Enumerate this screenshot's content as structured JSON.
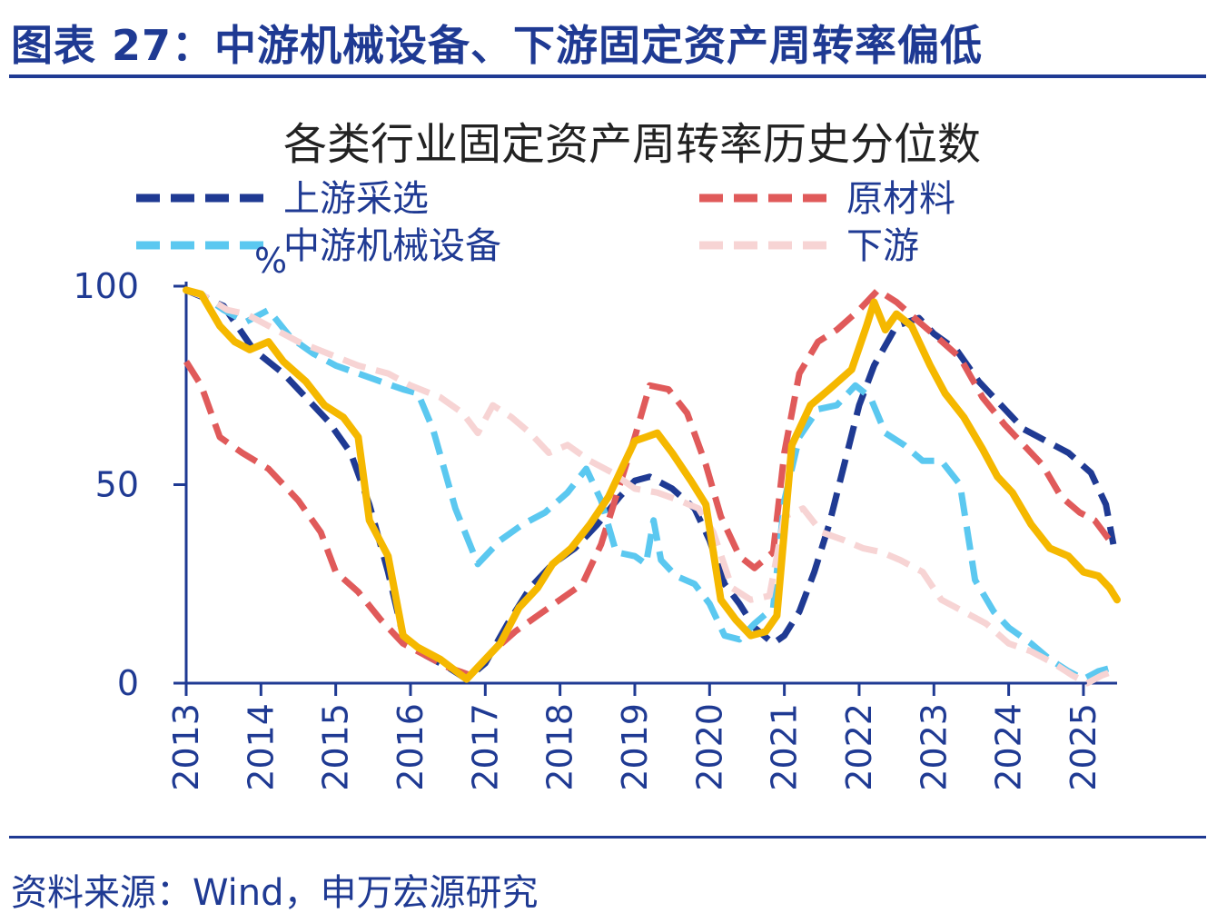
{
  "figure_title": "图表 27：中游机械设备、下游固定资产周转率偏低",
  "source": "资料来源：Wind，申万宏源研究",
  "colors": {
    "upstream": "#1f3a93",
    "materials": "#e05a5a",
    "midstream": "#5bc8f0",
    "downstream": "#f7d4d4",
    "highlight": "#f5b800",
    "axis": "#1f3a93"
  },
  "chart_data": {
    "type": "line",
    "title": "各类行业固定资产周转率历史分位数",
    "ylabel": "%",
    "ylim": [
      0,
      100
    ],
    "yticks": [
      0,
      50,
      100
    ],
    "xlim": [
      2013,
      2025.45
    ],
    "xticks": [
      "2013",
      "2014",
      "2015",
      "2016",
      "2017",
      "2018",
      "2019",
      "2020",
      "2021",
      "2022",
      "2023",
      "2024",
      "2025"
    ],
    "legend_position": "top",
    "series": [
      {
        "name": "上游采选",
        "style": "dashed",
        "color": "#1f3a93",
        "points": [
          [
            2013.0,
            99
          ],
          [
            2013.5,
            95
          ],
          [
            2013.9,
            84
          ],
          [
            2014.3,
            78
          ],
          [
            2014.6,
            72
          ],
          [
            2014.9,
            66
          ],
          [
            2015.2,
            58
          ],
          [
            2015.45,
            45
          ],
          [
            2015.7,
            28
          ],
          [
            2015.9,
            12
          ],
          [
            2016.2,
            7
          ],
          [
            2016.5,
            4
          ],
          [
            2016.75,
            1
          ],
          [
            2017.0,
            5
          ],
          [
            2017.3,
            15
          ],
          [
            2017.6,
            24
          ],
          [
            2017.9,
            30
          ],
          [
            2018.2,
            34
          ],
          [
            2018.5,
            40
          ],
          [
            2018.8,
            47
          ],
          [
            2019.0,
            51
          ],
          [
            2019.2,
            52
          ],
          [
            2019.5,
            49
          ],
          [
            2019.8,
            44
          ],
          [
            2020.0,
            36
          ],
          [
            2020.2,
            25
          ],
          [
            2020.4,
            20
          ],
          [
            2020.6,
            14
          ],
          [
            2020.85,
            10
          ],
          [
            2021.0,
            12
          ],
          [
            2021.2,
            18
          ],
          [
            2021.4,
            28
          ],
          [
            2021.6,
            40
          ],
          [
            2021.8,
            55
          ],
          [
            2022.0,
            70
          ],
          [
            2022.2,
            80
          ],
          [
            2022.5,
            90
          ],
          [
            2022.8,
            92
          ],
          [
            2023.0,
            88
          ],
          [
            2023.3,
            84
          ],
          [
            2023.6,
            76
          ],
          [
            2023.9,
            70
          ],
          [
            2024.2,
            64
          ],
          [
            2024.5,
            61
          ],
          [
            2024.8,
            58
          ],
          [
            2025.1,
            53
          ],
          [
            2025.3,
            45
          ],
          [
            2025.4,
            35
          ]
        ]
      },
      {
        "name": "原材料",
        "style": "dashed",
        "color": "#e05a5a",
        "points": [
          [
            2013.0,
            81
          ],
          [
            2013.2,
            75
          ],
          [
            2013.45,
            62
          ],
          [
            2013.75,
            58
          ],
          [
            2014.1,
            54
          ],
          [
            2014.5,
            46
          ],
          [
            2014.8,
            38
          ],
          [
            2015.0,
            28
          ],
          [
            2015.3,
            23
          ],
          [
            2015.6,
            16
          ],
          [
            2015.9,
            10
          ],
          [
            2016.2,
            7
          ],
          [
            2016.5,
            4
          ],
          [
            2016.8,
            2
          ],
          [
            2017.1,
            8
          ],
          [
            2017.4,
            13
          ],
          [
            2017.7,
            17
          ],
          [
            2018.0,
            21
          ],
          [
            2018.3,
            25
          ],
          [
            2018.55,
            35
          ],
          [
            2018.8,
            50
          ],
          [
            2019.0,
            62
          ],
          [
            2019.2,
            75
          ],
          [
            2019.45,
            74
          ],
          [
            2019.7,
            68
          ],
          [
            2019.95,
            55
          ],
          [
            2020.15,
            42
          ],
          [
            2020.4,
            32
          ],
          [
            2020.6,
            29
          ],
          [
            2020.85,
            33
          ],
          [
            2021.0,
            58
          ],
          [
            2021.2,
            78
          ],
          [
            2021.45,
            86
          ],
          [
            2021.7,
            89
          ],
          [
            2022.0,
            94
          ],
          [
            2022.25,
            99
          ],
          [
            2022.5,
            96
          ],
          [
            2022.8,
            91
          ],
          [
            2023.05,
            87
          ],
          [
            2023.35,
            82
          ],
          [
            2023.65,
            72
          ],
          [
            2023.95,
            65
          ],
          [
            2024.2,
            60
          ],
          [
            2024.45,
            55
          ],
          [
            2024.7,
            47
          ],
          [
            2024.95,
            43
          ],
          [
            2025.15,
            41
          ],
          [
            2025.35,
            36
          ]
        ]
      },
      {
        "name": "中游机械设备",
        "style": "dashed",
        "color": "#5bc8f0",
        "points": [
          [
            2013.0,
            99
          ],
          [
            2013.2,
            98
          ],
          [
            2013.5,
            94
          ],
          [
            2013.8,
            91
          ],
          [
            2014.1,
            94
          ],
          [
            2014.4,
            87
          ],
          [
            2014.7,
            83
          ],
          [
            2015.0,
            80
          ],
          [
            2015.3,
            78
          ],
          [
            2015.6,
            76
          ],
          [
            2015.9,
            74
          ],
          [
            2016.1,
            73
          ],
          [
            2016.3,
            64
          ],
          [
            2016.6,
            44
          ],
          [
            2016.9,
            30
          ],
          [
            2017.2,
            36
          ],
          [
            2017.5,
            40
          ],
          [
            2017.8,
            43
          ],
          [
            2018.1,
            48
          ],
          [
            2018.35,
            54
          ],
          [
            2018.55,
            46
          ],
          [
            2018.75,
            33
          ],
          [
            2019.0,
            32
          ],
          [
            2019.15,
            30
          ],
          [
            2019.25,
            41
          ],
          [
            2019.35,
            31
          ],
          [
            2019.55,
            27
          ],
          [
            2019.8,
            25
          ],
          [
            2020.0,
            20
          ],
          [
            2020.2,
            12
          ],
          [
            2020.4,
            11
          ],
          [
            2020.6,
            15
          ],
          [
            2020.85,
            19
          ],
          [
            2021.0,
            46
          ],
          [
            2021.2,
            62
          ],
          [
            2021.45,
            69
          ],
          [
            2021.7,
            70
          ],
          [
            2021.95,
            75
          ],
          [
            2022.15,
            72
          ],
          [
            2022.35,
            63
          ],
          [
            2022.6,
            60
          ],
          [
            2022.85,
            56
          ],
          [
            2023.1,
            56
          ],
          [
            2023.35,
            50
          ],
          [
            2023.55,
            26
          ],
          [
            2023.8,
            18
          ],
          [
            2024.0,
            14
          ],
          [
            2024.3,
            10
          ],
          [
            2024.55,
            6
          ],
          [
            2024.8,
            3
          ],
          [
            2025.0,
            1
          ],
          [
            2025.2,
            3
          ],
          [
            2025.4,
            4
          ]
        ]
      },
      {
        "name": "下游",
        "style": "dashed",
        "color": "#f7d4d4",
        "points": [
          [
            2013.0,
            99
          ],
          [
            2013.3,
            97
          ],
          [
            2013.55,
            94
          ],
          [
            2013.8,
            93
          ],
          [
            2014.1,
            90
          ],
          [
            2014.5,
            86
          ],
          [
            2014.9,
            83
          ],
          [
            2015.3,
            80
          ],
          [
            2015.7,
            78
          ],
          [
            2016.0,
            75
          ],
          [
            2016.4,
            72
          ],
          [
            2016.7,
            68
          ],
          [
            2016.9,
            63
          ],
          [
            2017.1,
            70
          ],
          [
            2017.35,
            67
          ],
          [
            2017.6,
            63
          ],
          [
            2017.85,
            58
          ],
          [
            2018.1,
            60
          ],
          [
            2018.4,
            56
          ],
          [
            2018.7,
            53
          ],
          [
            2019.0,
            49
          ],
          [
            2019.3,
            48
          ],
          [
            2019.6,
            46
          ],
          [
            2019.85,
            44
          ],
          [
            2020.05,
            38
          ],
          [
            2020.3,
            24
          ],
          [
            2020.55,
            21
          ],
          [
            2020.8,
            22
          ],
          [
            2021.0,
            42
          ],
          [
            2021.25,
            44
          ],
          [
            2021.5,
            38
          ],
          [
            2021.8,
            36
          ],
          [
            2022.05,
            34
          ],
          [
            2022.3,
            33
          ],
          [
            2022.55,
            31
          ],
          [
            2022.85,
            28
          ],
          [
            2023.1,
            21
          ],
          [
            2023.4,
            18
          ],
          [
            2023.7,
            15
          ],
          [
            2024.0,
            10
          ],
          [
            2024.3,
            8
          ],
          [
            2024.6,
            5
          ],
          [
            2024.85,
            2
          ],
          [
            2025.05,
            0
          ],
          [
            2025.25,
            2
          ],
          [
            2025.4,
            3
          ]
        ]
      },
      {
        "name": "",
        "style": "solid",
        "color": "#f5b800",
        "points": [
          [
            2013.0,
            99
          ],
          [
            2013.2,
            98
          ],
          [
            2013.45,
            90
          ],
          [
            2013.65,
            86
          ],
          [
            2013.85,
            84
          ],
          [
            2014.1,
            86
          ],
          [
            2014.3,
            81
          ],
          [
            2014.6,
            76
          ],
          [
            2014.85,
            70
          ],
          [
            2015.1,
            67
          ],
          [
            2015.3,
            62
          ],
          [
            2015.45,
            41
          ],
          [
            2015.7,
            32
          ],
          [
            2015.9,
            12
          ],
          [
            2016.1,
            9
          ],
          [
            2016.4,
            6
          ],
          [
            2016.75,
            1
          ],
          [
            2017.0,
            6
          ],
          [
            2017.2,
            10
          ],
          [
            2017.45,
            19
          ],
          [
            2017.7,
            24
          ],
          [
            2017.9,
            30
          ],
          [
            2018.15,
            34
          ],
          [
            2018.4,
            40
          ],
          [
            2018.65,
            47
          ],
          [
            2018.85,
            55
          ],
          [
            2019.0,
            61
          ],
          [
            2019.15,
            62
          ],
          [
            2019.3,
            63
          ],
          [
            2019.5,
            58
          ],
          [
            2019.75,
            51
          ],
          [
            2019.95,
            45
          ],
          [
            2020.15,
            21
          ],
          [
            2020.35,
            16
          ],
          [
            2020.55,
            12
          ],
          [
            2020.75,
            13
          ],
          [
            2020.9,
            17
          ],
          [
            2021.1,
            60
          ],
          [
            2021.35,
            70
          ],
          [
            2021.6,
            74
          ],
          [
            2021.9,
            79
          ],
          [
            2022.1,
            90
          ],
          [
            2022.2,
            96
          ],
          [
            2022.35,
            89
          ],
          [
            2022.5,
            93
          ],
          [
            2022.7,
            90
          ],
          [
            2022.95,
            80
          ],
          [
            2023.15,
            73
          ],
          [
            2023.4,
            67
          ],
          [
            2023.65,
            59
          ],
          [
            2023.85,
            52
          ],
          [
            2024.05,
            48
          ],
          [
            2024.3,
            40
          ],
          [
            2024.55,
            34
          ],
          [
            2024.8,
            32
          ],
          [
            2025.0,
            28
          ],
          [
            2025.2,
            27
          ],
          [
            2025.35,
            24
          ],
          [
            2025.45,
            21
          ]
        ]
      }
    ]
  }
}
